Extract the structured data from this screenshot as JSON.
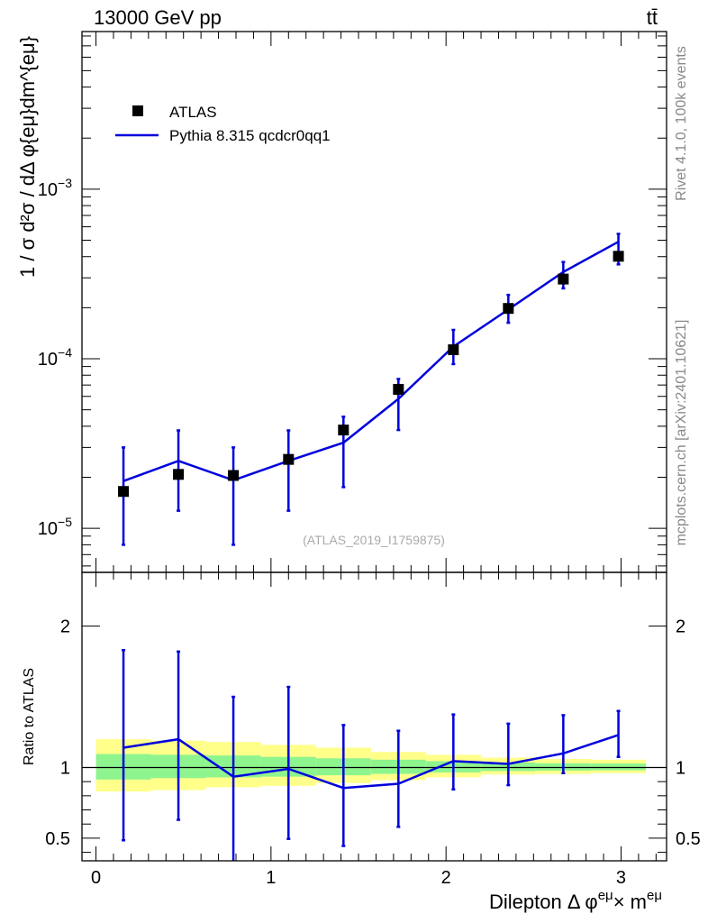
{
  "header": {
    "energy_label": "13000 GeV pp",
    "process_label": "tt̄"
  },
  "side_text": {
    "rivet": "Rivet 4.1.0,  100k events",
    "site": "mcplots.cern.ch [arXiv:2401.10621]"
  },
  "watermark": "(ATLAS_2019_I1759875)",
  "legend": {
    "data_label": "ATLAS",
    "mc_label": "Pythia 8.315 qcdcr0qq1"
  },
  "colors": {
    "data": "#000000",
    "mc": "#0000dd",
    "band_inner": "#8ef48e",
    "band_outer": "#ffff8a"
  },
  "chart_data": [
    {
      "type": "scatter",
      "panel": "main",
      "ylabel": "1 / σ  d²σ / dΔ φ{eμ}dm^{eμ}",
      "yscale": "log",
      "xlim": [
        -0.08,
        3.26
      ],
      "ylim": [
        5.5e-06,
        0.0085
      ],
      "yticks": [
        {
          "value": 1e-05,
          "base": "10",
          "exp": "−5"
        },
        {
          "value": 0.0001,
          "base": "10",
          "exp": "−4"
        },
        {
          "value": 0.001,
          "base": "10",
          "exp": "−3"
        }
      ],
      "x": [
        0.157,
        0.471,
        0.785,
        1.1,
        1.414,
        1.728,
        2.042,
        2.356,
        2.67,
        2.985
      ],
      "series": [
        {
          "name": "ATLAS",
          "values": [
            1.65e-05,
            2.08e-05,
            2.05e-05,
            2.55e-05,
            3.8e-05,
            6.6e-05,
            0.000113,
            0.000198,
            0.000295,
            0.000402
          ],
          "err_low": [
            8e-06,
            1.27e-05,
            8e-06,
            1.27e-05,
            1.75e-05,
            3.8e-05,
            9.3e-05,
            0.000163,
            0.00026,
            0.00036
          ],
          "err_high": [
            3e-05,
            3.78e-05,
            3e-05,
            3.78e-05,
            4.55e-05,
            7.6e-05,
            0.000148,
            0.000238,
            0.000372,
            0.000452
          ]
        },
        {
          "name": "Pythia 8.315 qcdcr0qq1",
          "values": [
            1.9e-05,
            2.5e-05,
            1.92e-05,
            2.5e-05,
            3.2e-05,
            5.8e-05,
            0.000118,
            0.000195,
            0.000325,
            0.00049
          ],
          "err_low": [
            8e-06,
            1.27e-05,
            8e-06,
            1.27e-05,
            1.75e-05,
            3.8e-05,
            9.3e-05,
            0.000163,
            0.00026,
            0.00036
          ],
          "err_high": [
            3e-05,
            3.78e-05,
            3e-05,
            3.78e-05,
            4.55e-05,
            7.6e-05,
            0.000148,
            0.000238,
            0.000372,
            0.000545
          ]
        }
      ]
    },
    {
      "type": "line",
      "panel": "ratio",
      "ylabel": "Ratio to ATLAS",
      "xlabel_main": "Dilepton Δ φ",
      "xlabel_sup1": "eμ",
      "xlabel_mid": "× m",
      "xlabel_sup2": "eμ",
      "xlim": [
        -0.08,
        3.26
      ],
      "ylim": [
        0.34,
        2.38
      ],
      "yticks": [
        0.5,
        1,
        2
      ],
      "ytick_labels": [
        "0.5",
        "1",
        "2"
      ],
      "xticks": [
        0,
        1,
        2,
        3
      ],
      "xtick_labels": [
        "0",
        "1",
        "2",
        "3"
      ],
      "reference": 1,
      "bin_edges": [
        0,
        0.314,
        0.628,
        0.942,
        1.257,
        1.571,
        1.885,
        2.199,
        2.513,
        2.827,
        3.142
      ],
      "band_outer": {
        "low": [
          0.83,
          0.84,
          0.86,
          0.87,
          0.89,
          0.91,
          0.93,
          0.95,
          0.955,
          0.96
        ],
        "high": [
          1.2,
          1.19,
          1.18,
          1.16,
          1.14,
          1.11,
          1.09,
          1.07,
          1.06,
          1.055
        ]
      },
      "band_inner": {
        "low": [
          0.915,
          0.925,
          0.93,
          0.935,
          0.945,
          0.955,
          0.965,
          0.975,
          0.978,
          0.98
        ],
        "high": [
          1.095,
          1.09,
          1.085,
          1.075,
          1.065,
          1.055,
          1.045,
          1.035,
          1.03,
          1.028
        ]
      },
      "x": [
        0.157,
        0.471,
        0.785,
        1.1,
        1.414,
        1.728,
        2.042,
        2.356,
        2.67,
        2.985
      ],
      "values": [
        1.14,
        1.2,
        0.935,
        0.99,
        0.855,
        0.885,
        1.045,
        1.025,
        1.1,
        1.23
      ],
      "err_low": [
        0.485,
        0.63,
        0.33,
        0.495,
        0.445,
        0.58,
        0.845,
        0.875,
        0.96,
        1.075
      ],
      "err_high": [
        1.83,
        1.82,
        1.5,
        1.57,
        1.3,
        1.26,
        1.375,
        1.31,
        1.37,
        1.4
      ]
    }
  ]
}
